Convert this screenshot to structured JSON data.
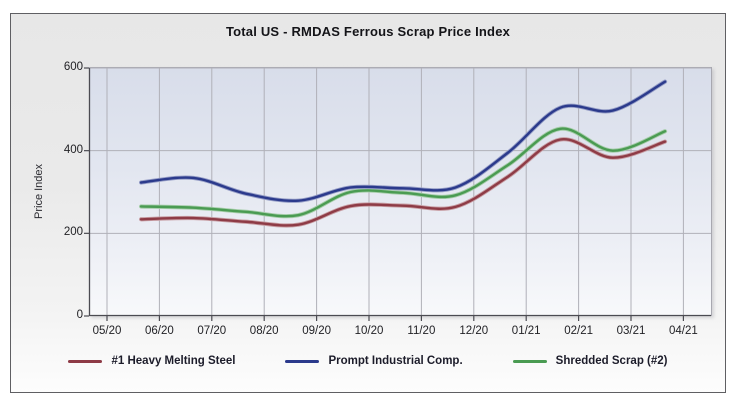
{
  "title": "Total US - RMDAS Ferrous Scrap Price Index",
  "chart_data": {
    "type": "line",
    "title": "Total US - RMDAS Ferrous Scrap Price Index",
    "xlabel": "",
    "ylabel": "Price Index",
    "ylim": [
      0,
      600
    ],
    "y_ticks": [
      0,
      200,
      400,
      600
    ],
    "x_tick_labels": [
      "05/20",
      "06/20",
      "07/20",
      "08/20",
      "09/20",
      "10/20",
      "11/20",
      "12/20",
      "01/21",
      "02/21",
      "03/21",
      "04/21"
    ],
    "point_months": [
      "05/20",
      "06/20",
      "07/20",
      "08/20",
      "09/20",
      "10/20",
      "11/20",
      "12/20",
      "01/21",
      "02/21",
      "03/21"
    ],
    "x_offset_months": 0.65,
    "grid": true,
    "legend_position": "bottom",
    "smoothed_lines": true,
    "series": [
      {
        "name": "#1 Heavy Melting Steel",
        "color": "#8e3b46",
        "values": [
          234,
          237,
          228,
          221,
          266,
          267,
          264,
          337,
          427,
          383,
          422
        ]
      },
      {
        "name": "Prompt Industrial Comp.",
        "color": "#2b3a8c",
        "values": [
          323,
          334,
          296,
          279,
          311,
          309,
          311,
          395,
          504,
          497,
          567
        ]
      },
      {
        "name": "Shredded Scrap (#2)",
        "color": "#4a9b52",
        "values": [
          265,
          262,
          252,
          244,
          300,
          298,
          292,
          365,
          453,
          400,
          447
        ]
      }
    ],
    "draw_order": [
      0,
      2,
      1
    ],
    "colors": {
      "plot_bg_top": "#d8ddea",
      "plot_bg_bottom": "#f8f9fb",
      "gridline": "#b0b0b8",
      "axis": "#4b4b52",
      "panel_bg": "#e8e8e8",
      "panel_border": "#5f5f63"
    }
  }
}
